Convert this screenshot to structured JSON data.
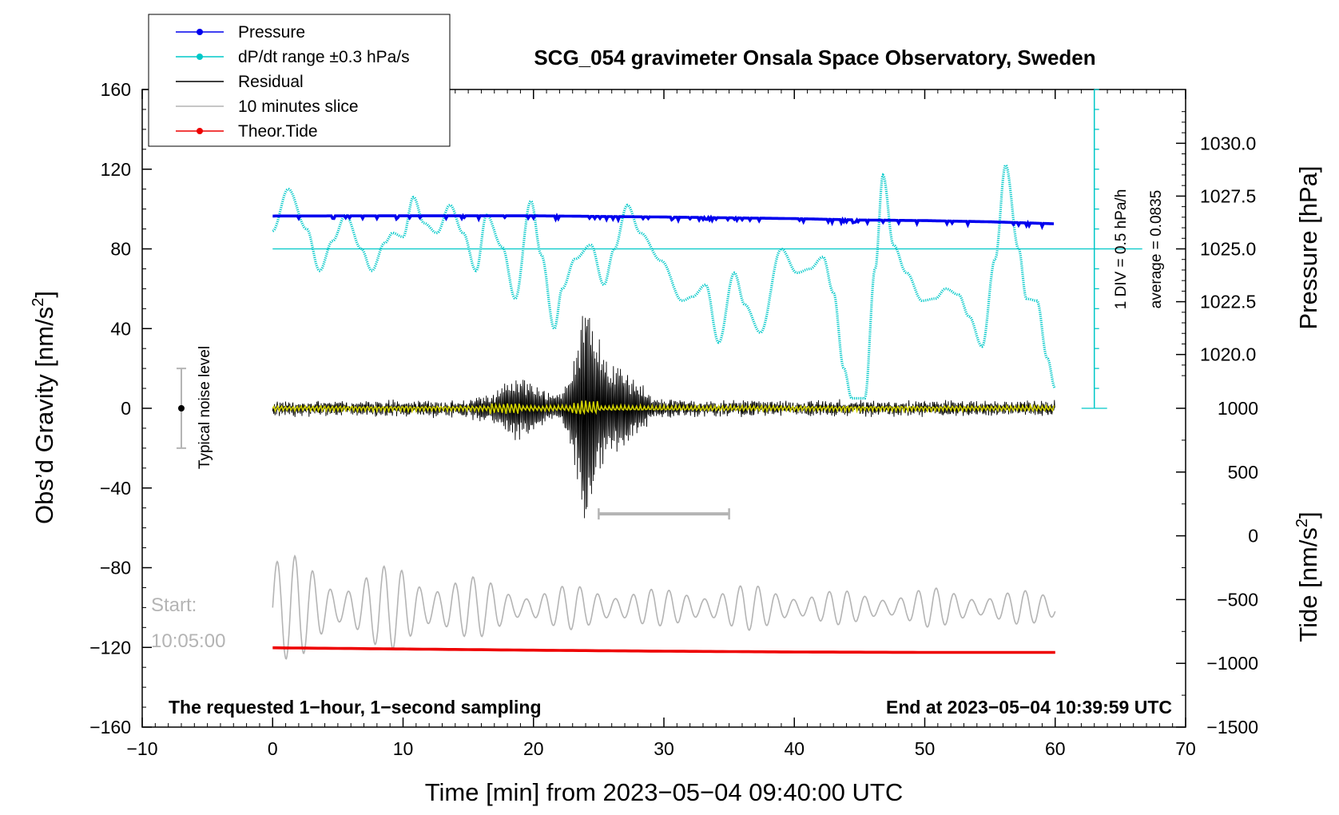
{
  "chart_data": {
    "type": "line",
    "title": "SCG_054 gravimeter Onsala Space Observatory, Sweden",
    "xlabel": "Time [min] from 2023−05−04 09:40:00 UTC",
    "ylabel_left": "Obs’d Gravity [nm/s²]",
    "ylabel_left_base": "Obs’d Gravity [nm/s",
    "ylabel_left_sup": "2",
    "ylabel_left_end": "]",
    "ylabel_right_top": "Pressure [hPa]",
    "ylabel_right_bottom": "Tide [nm/s²]",
    "ylabel_right_bottom_base": "Tide [nm/s",
    "ylabel_right_bottom_sup": "2",
    "ylabel_right_bottom_end": "]",
    "xlim": [
      -10,
      70
    ],
    "ylim_left": [
      -160,
      160
    ],
    "x_ticks": [
      -10,
      0,
      10,
      20,
      30,
      40,
      50,
      60,
      70
    ],
    "x_tick_labels": [
      "−10",
      "0",
      "10",
      "20",
      "30",
      "40",
      "50",
      "60",
      "70"
    ],
    "y_left_ticks": [
      160,
      120,
      80,
      40,
      0,
      -40,
      -80,
      -120,
      -160
    ],
    "y_left_tick_labels": [
      "160",
      "120",
      "80",
      "40",
      "0",
      "−40",
      "−80",
      "−120",
      "−160"
    ],
    "pressure_axis": {
      "ticks": [
        1030.0,
        1027.5,
        1025.0,
        1022.5,
        1020.0
      ],
      "tick_labels": [
        "1030.0",
        "1027.5",
        "1025.0",
        "1022.5",
        "1020.0"
      ],
      "gravity_equivalent_at_1025": 80,
      "gravity_per_hpa": 10.6
    },
    "tide_axis": {
      "ticks": [
        1000,
        500,
        0,
        -500,
        -1000,
        -1500
      ],
      "tick_labels": [
        "1000",
        "500",
        "0",
        "−500",
        "−1000",
        "−1500"
      ],
      "range": [
        -1500,
        1000
      ],
      "gravity_range": [
        -160,
        0
      ]
    },
    "legend": [
      {
        "label": "Pressure",
        "color": "#0000ee",
        "marker": true
      },
      {
        "label": "dP/dt range ±0.3 hPa/s",
        "color": "#00c8c8",
        "marker": true
      },
      {
        "label": "Residual",
        "color": "#000000",
        "marker": false
      },
      {
        "label": "10 minutes slice",
        "color": "#b4b4b4",
        "marker": false
      },
      {
        "label": "Theor.Tide",
        "color": "#ee0000",
        "marker": true
      }
    ],
    "series": [
      {
        "name": "Pressure",
        "color": "#0000ee",
        "x": [
          0,
          10,
          20,
          30,
          40,
          45,
          50,
          55,
          60
        ],
        "values": [
          96.5,
          96.6,
          96.6,
          96.0,
          95.2,
          94.5,
          94.2,
          93.6,
          92.6
        ]
      },
      {
        "name": "dP/dt",
        "color": "#00c8c8",
        "x": [
          0,
          1.2,
          2.6,
          3.6,
          4.6,
          5.6,
          6.8,
          7.6,
          8.6,
          9.2,
          10,
          10.8,
          11.6,
          12.6,
          13.6,
          14.6,
          15.6,
          16.4,
          17.6,
          18.6,
          19.8,
          20.6,
          21.6,
          22.2,
          23.2,
          24.4,
          25.4,
          26.2,
          27.2,
          28.2,
          29.8,
          31.4,
          32.2,
          33.2,
          34.2,
          35.4,
          36.2,
          37.4,
          39,
          40.2,
          41.2,
          42.2,
          43,
          43.8,
          44.4,
          45.4,
          46.2,
          46.8,
          47.6,
          48.6,
          49.8,
          50.8,
          51.6,
          52.6,
          53.4,
          54.4,
          55.4,
          56.2,
          57.2,
          57.8,
          58.6,
          59.4,
          60
        ],
        "values": [
          89,
          110,
          90,
          69,
          84,
          97,
          80,
          69,
          83,
          88,
          86,
          106,
          93,
          88,
          102,
          88,
          69,
          97,
          81,
          55,
          104,
          77,
          40,
          60,
          75,
          82,
          62,
          80,
          102,
          88,
          74,
          54,
          56,
          62,
          33,
          68,
          52,
          38,
          80,
          68,
          70,
          76,
          58,
          20,
          5,
          5,
          70,
          117,
          82,
          68,
          54,
          55,
          60,
          57,
          46,
          31,
          75,
          122,
          80,
          55,
          54,
          25,
          10
        ]
      },
      {
        "name": "Residual",
        "color": "#000000",
        "x": [
          0,
          5,
          10,
          15,
          17,
          19,
          20,
          21,
          22,
          23,
          24,
          24.5,
          25,
          26,
          27,
          28,
          29,
          30,
          35,
          40,
          45,
          50,
          55,
          60
        ],
        "amplitude": [
          3,
          3,
          3,
          4,
          8,
          18,
          14,
          8,
          6,
          22,
          68,
          52,
          34,
          24,
          20,
          14,
          6,
          4,
          3,
          3,
          3,
          3,
          3,
          3
        ]
      },
      {
        "name": "Filtered (yellow)",
        "color": "#d2d200",
        "x": [
          0,
          60
        ],
        "values": [
          0,
          0
        ]
      },
      {
        "name": "10 minutes slice",
        "color": "#b4b4b4",
        "x": [
          0,
          5,
          10,
          15,
          20,
          25,
          30,
          35,
          40,
          45,
          50,
          55,
          60
        ],
        "amplitude": [
          30,
          18,
          22,
          16,
          10,
          12,
          9,
          12,
          10,
          8,
          10,
          9,
          8
        ],
        "center": -100
      },
      {
        "name": "Theor.Tide",
        "color": "#ee0000",
        "x": [
          0,
          10,
          20,
          30,
          40,
          50,
          60
        ],
        "values": [
          -120.2,
          -120.8,
          -121.4,
          -121.9,
          -122.3,
          -122.5,
          -122.5
        ]
      }
    ],
    "annotations": {
      "noise_label": "Typical noise level",
      "noise_x": -7,
      "noise_range": [
        -20,
        20
      ],
      "slice_bar": [
        25,
        35
      ],
      "slice_bar_y": -53,
      "start_label": "Start:",
      "start_time": "10:05:00",
      "sampling_note": "The requested 1−hour, 1−second sampling",
      "end_note": "End at 2023−05−04 10:39:59 UTC",
      "dpdt_div": "1 DIV = 0.5 hPa/h",
      "dpdt_avg": "average = 0.0835",
      "dpdt_ref_y": 80,
      "dpdt_ref_x_end": 63
    }
  }
}
